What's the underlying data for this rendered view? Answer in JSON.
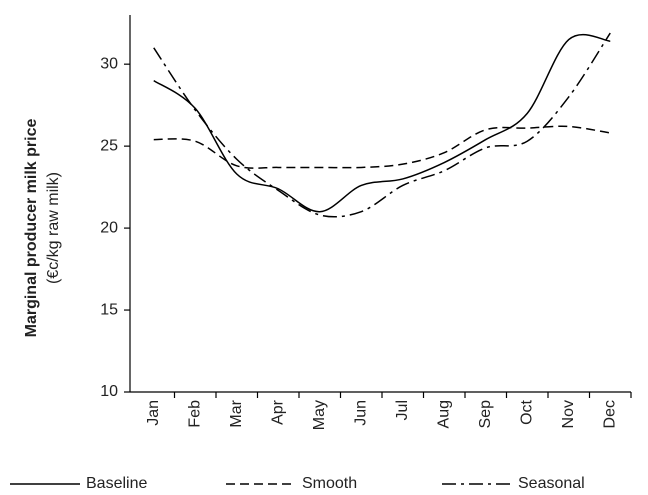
{
  "chart_data": {
    "type": "line",
    "y_label": "Marginal producer milk price",
    "y_label_unit": "(€c/kg raw milk)",
    "categories": [
      "Jan",
      "Feb",
      "Mar",
      "Apr",
      "May",
      "Jun",
      "Jul",
      "Aug",
      "Sep",
      "Oct",
      "Nov",
      "Dec"
    ],
    "series": [
      {
        "name": "Baseline",
        "color": "#000000",
        "dash": "solid",
        "values": [
          29.0,
          27.3,
          23.3,
          22.4,
          21.0,
          22.6,
          23.0,
          24.0,
          25.4,
          27.0,
          31.5,
          31.4
        ]
      },
      {
        "name": "Smooth",
        "color": "#000000",
        "dash": "dashed",
        "values": [
          25.4,
          25.3,
          23.8,
          23.7,
          23.7,
          23.7,
          23.9,
          24.6,
          26.0,
          26.1,
          26.2,
          25.8
        ]
      },
      {
        "name": "Seasonal",
        "color": "#000000",
        "dash": "dashdot",
        "values": [
          31.0,
          27.2,
          24.2,
          22.3,
          20.8,
          21.0,
          22.6,
          23.5,
          24.9,
          25.3,
          28.0,
          31.9
        ]
      }
    ],
    "ylim": [
      10,
      33
    ],
    "yticks": [
      10,
      15,
      20,
      25,
      30
    ],
    "grid": false,
    "legend": "bottom"
  }
}
